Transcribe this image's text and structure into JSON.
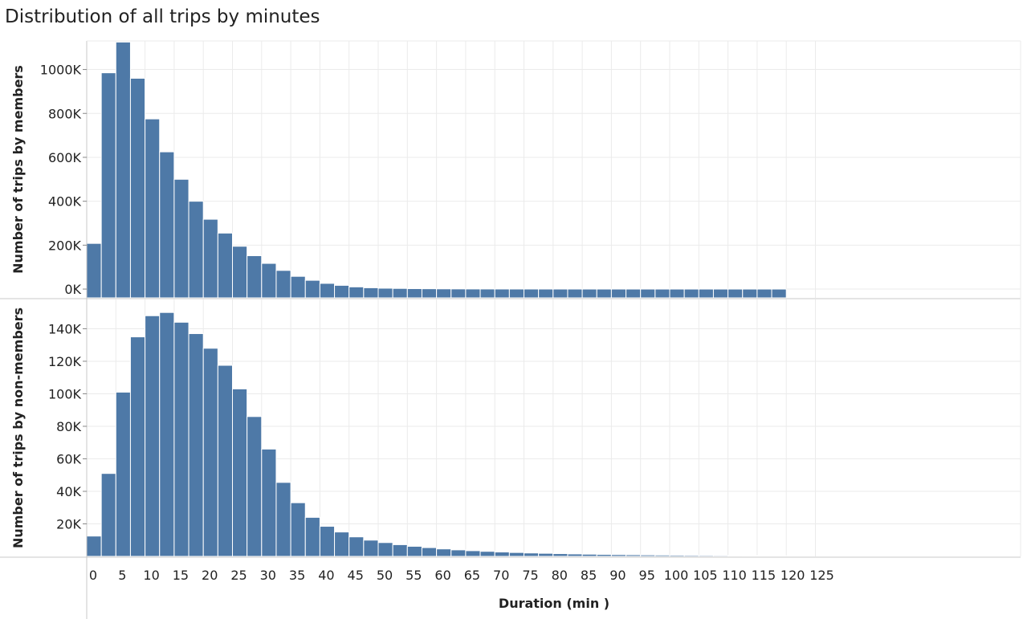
{
  "title": "Distribution of all trips by minutes",
  "colors": {
    "bar": "#4e79a7",
    "grid": "#ebebeb",
    "axis": "#c8c8c8"
  },
  "chart_data": {
    "type": "bar",
    "title": "Distribution of all trips by minutes",
    "xlabel": "Duration (min )",
    "x_ticks": [
      0,
      5,
      10,
      15,
      20,
      25,
      30,
      35,
      40,
      45,
      50,
      55,
      60,
      65,
      70,
      75,
      80,
      85,
      90,
      95,
      100,
      105,
      110,
      115,
      120,
      125
    ],
    "xlim": [
      0,
      125
    ],
    "grid": true,
    "bin_width_min": 2.5,
    "bin_starts": [
      0,
      2.5,
      5,
      7.5,
      10,
      12.5,
      15,
      17.5,
      20,
      22.5,
      25,
      27.5,
      30,
      32.5,
      35,
      37.5,
      40,
      42.5,
      45,
      47.5,
      50,
      52.5,
      55,
      57.5,
      60,
      62.5,
      65,
      67.5,
      70,
      72.5,
      75,
      77.5,
      80,
      82.5,
      85,
      87.5,
      90,
      92.5,
      95,
      97.5,
      100,
      102.5,
      105,
      107.5,
      110,
      112.5,
      115,
      117.5
    ],
    "panels": [
      {
        "ylabel": "Number of trips by members",
        "y_ticks": [
          0,
          200000,
          400000,
          600000,
          800000,
          1000000
        ],
        "y_tick_labels": [
          "0K",
          "200K",
          "400K",
          "600K",
          "800K",
          "1000K"
        ],
        "ylim": [
          -40000,
          1130000
        ],
        "values": [
          208000,
          985000,
          1125000,
          960000,
          775000,
          625000,
          500000,
          400000,
          318000,
          255000,
          195000,
          152000,
          117000,
          85000,
          58000,
          40000,
          26000,
          17000,
          10000,
          6000,
          4000,
          3000,
          2000,
          1500,
          1000,
          700,
          500,
          400,
          300,
          250,
          200,
          150,
          120,
          100,
          80,
          70,
          60,
          50,
          40,
          30,
          25,
          20,
          15,
          12,
          10,
          8,
          6,
          5
        ]
      },
      {
        "ylabel": "Number of trips by non-members",
        "y_ticks": [
          20000,
          40000,
          60000,
          80000,
          100000,
          120000,
          140000
        ],
        "y_tick_labels": [
          "20K",
          "40K",
          "60K",
          "80K",
          "100K",
          "120K",
          "140K"
        ],
        "ylim": [
          0,
          158000
        ],
        "values": [
          12500,
          51000,
          101000,
          135000,
          148000,
          150000,
          144000,
          137000,
          128000,
          117500,
          103000,
          86000,
          66000,
          45500,
          33000,
          24000,
          18500,
          15000,
          12000,
          10000,
          8500,
          7200,
          6200,
          5400,
          4600,
          4000,
          3500,
          3100,
          2700,
          2400,
          2100,
          1900,
          1700,
          1500,
          1350,
          1200,
          1100,
          1000,
          900,
          820,
          750,
          680,
          620,
          560,
          500,
          450,
          400,
          360
        ]
      }
    ]
  }
}
